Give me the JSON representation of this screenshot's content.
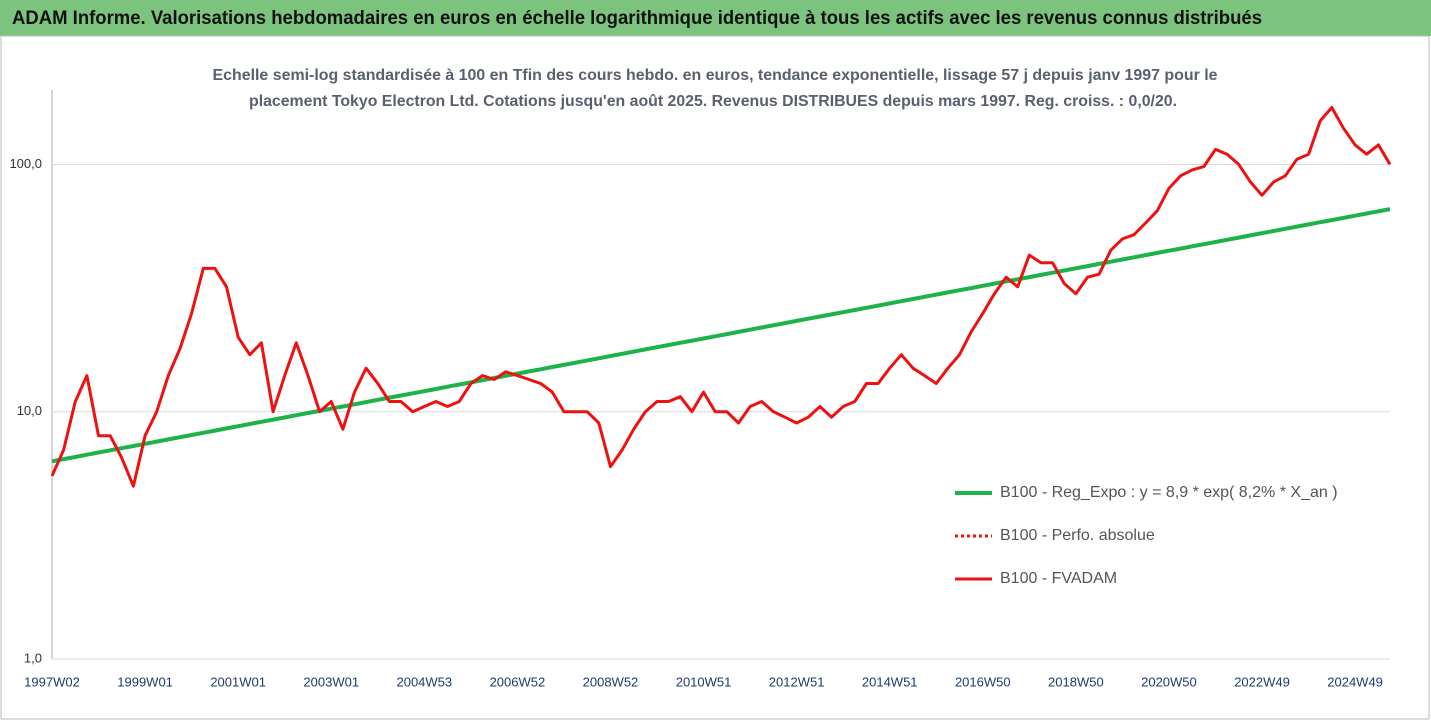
{
  "header": "ADAM Informe. Valorisations hebdomadaires en euros en échelle logarithmique identique à tous les actifs avec les revenus connus distribués",
  "chart_data": {
    "type": "line",
    "title": [
      "Echelle semi-log standardisée à 100 en Tfin des cours hebdo. en euros, tendance exponentielle, lissage 57 j depuis janv 1997 pour le",
      "placement Tokyo Electron Ltd. Cotations jusqu'en août 2025. Revenus DISTRIBUES depuis mars 1997. Reg. croiss. : 0,0/20."
    ],
    "log_scale": true,
    "grid": true,
    "legend": "right",
    "ylim": [
      1,
      200
    ],
    "yticks": [
      {
        "value": 1,
        "label": "1,0"
      },
      {
        "value": 10,
        "label": "10,0"
      },
      {
        "value": 100,
        "label": "100,0"
      }
    ],
    "categories": [
      "1997W02",
      null,
      null,
      null,
      null,
      null,
      null,
      null,
      "1999W01",
      null,
      null,
      null,
      null,
      null,
      null,
      null,
      "2001W01",
      null,
      null,
      null,
      null,
      null,
      null,
      null,
      "2003W01",
      null,
      null,
      null,
      null,
      null,
      null,
      null,
      "2004W53",
      null,
      null,
      null,
      null,
      null,
      null,
      null,
      "2006W52",
      null,
      null,
      null,
      null,
      null,
      null,
      null,
      "2008W52",
      null,
      null,
      null,
      null,
      null,
      null,
      null,
      "2010W51",
      null,
      null,
      null,
      null,
      null,
      null,
      null,
      "2012W51",
      null,
      null,
      null,
      null,
      null,
      null,
      null,
      "2014W51",
      null,
      null,
      null,
      null,
      null,
      null,
      null,
      "2016W50",
      null,
      null,
      null,
      null,
      null,
      null,
      null,
      "2018W50",
      null,
      null,
      null,
      null,
      null,
      null,
      null,
      "2020W50",
      null,
      null,
      null,
      null,
      null,
      null,
      null,
      "2022W49",
      null,
      null,
      null,
      null,
      null,
      null,
      null,
      "2024W49",
      null,
      null,
      null
    ],
    "series": [
      {
        "name": "B100 - Reg_Expo : y = 8,9 * exp( 8,2% *  X_an )",
        "color": "#1db34a",
        "values": [
          6.3,
          6.43,
          6.56,
          6.7,
          6.84,
          6.98,
          7.12,
          7.27,
          7.42,
          7.57,
          7.73,
          7.89,
          8.05,
          8.22,
          8.39,
          8.56,
          8.74,
          8.92,
          9.1,
          9.29,
          9.48,
          9.68,
          9.88,
          10.08,
          10.29,
          10.5,
          10.72,
          10.94,
          11.17,
          11.4,
          11.63,
          11.87,
          12.11,
          12.36,
          12.62,
          12.88,
          13.14,
          13.41,
          13.69,
          13.97,
          14.26,
          14.55,
          14.85,
          15.16,
          15.47,
          15.79,
          16.12,
          16.45,
          16.8,
          17.15,
          17.5,
          17.86,
          18.23,
          18.61,
          18.99,
          19.38,
          19.78,
          20.19,
          20.6,
          21.03,
          21.46,
          21.91,
          22.36,
          22.82,
          23.29,
          23.77,
          24.26,
          24.76,
          25.27,
          25.79,
          26.32,
          26.87,
          27.42,
          27.98,
          28.56,
          29.15,
          29.75,
          30.37,
          30.99,
          31.63,
          32.29,
          32.96,
          33.64,
          34.33,
          35.04,
          35.76,
          36.5,
          37.25,
          38.02,
          38.8,
          39.61,
          40.42,
          41.26,
          42.11,
          42.97,
          43.86,
          44.77,
          45.69,
          46.64,
          47.6,
          48.58,
          49.58,
          50.6,
          51.65,
          52.71,
          53.8,
          54.91,
          56.04,
          57.2,
          58.38,
          59.58,
          60.81,
          62.07,
          63.35,
          64.66,
          66.0
        ]
      },
      {
        "name": "B100 - Perfo. absolue",
        "color": "#ee1111",
        "dashed": true
      },
      {
        "name": "B100 - FVADAM",
        "color": "#ee1111",
        "values": [
          5.5,
          7,
          11,
          14,
          8,
          8,
          6.5,
          5,
          8,
          10,
          14,
          18,
          25,
          38,
          38,
          32,
          20,
          17,
          19,
          10,
          14,
          19,
          14,
          10,
          11,
          8.5,
          12,
          15,
          13,
          11,
          11,
          10,
          10.5,
          11,
          10.5,
          11,
          13,
          14,
          13.5,
          14.5,
          14,
          13.5,
          13,
          12,
          10,
          10,
          10,
          9,
          6,
          7,
          8.5,
          10,
          11,
          11,
          11.5,
          10,
          12,
          10,
          10,
          9,
          10.5,
          11,
          10,
          9.5,
          9,
          9.5,
          10.5,
          9.5,
          10.5,
          11,
          13,
          13,
          15,
          17,
          15,
          14,
          13,
          15,
          17,
          21,
          25,
          30,
          35,
          32,
          43,
          40,
          40,
          33,
          30,
          35,
          36,
          45,
          50,
          52,
          58,
          65,
          80,
          90,
          95,
          98,
          115,
          110,
          100,
          85,
          75,
          85,
          90,
          105,
          110,
          150,
          170,
          140,
          120,
          110,
          120,
          100
        ]
      }
    ]
  }
}
